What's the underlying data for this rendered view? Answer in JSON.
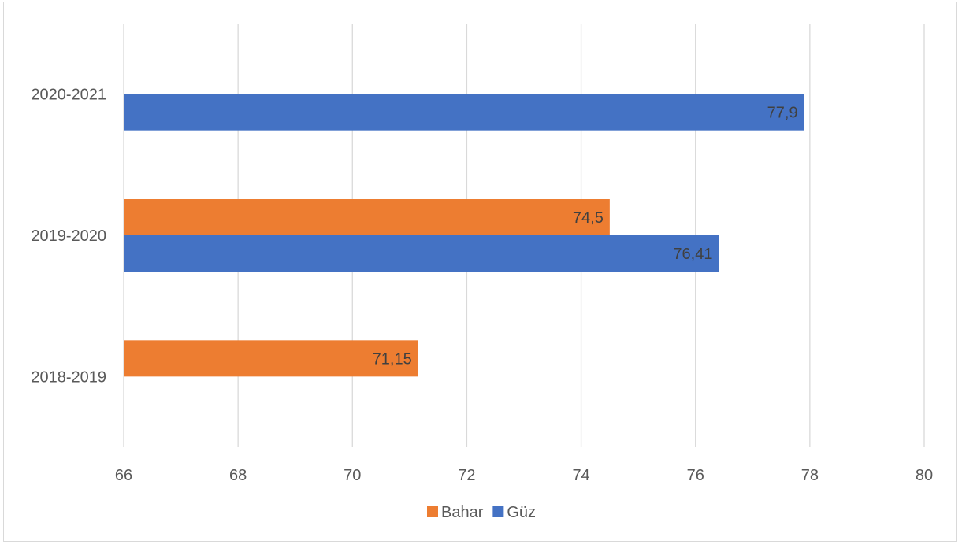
{
  "chart_data": {
    "type": "bar",
    "orientation": "horizontal",
    "categories": [
      "2018-2019",
      "2019-2020",
      "2020-2021"
    ],
    "series": [
      {
        "name": "Bahar",
        "color": "#ed7d31",
        "values": [
          71.15,
          74.5,
          null
        ],
        "labels": [
          "71,15",
          "74,5",
          ""
        ]
      },
      {
        "name": "Güz",
        "color": "#4472c4",
        "values": [
          null,
          76.41,
          77.9
        ],
        "labels": [
          "",
          "76,41",
          "77,9"
        ]
      }
    ],
    "xlim": [
      66,
      80
    ],
    "x_ticks": [
      "66",
      "68",
      "70",
      "72",
      "74",
      "76",
      "78",
      "80"
    ],
    "grid": true,
    "legend_position": "bottom"
  }
}
